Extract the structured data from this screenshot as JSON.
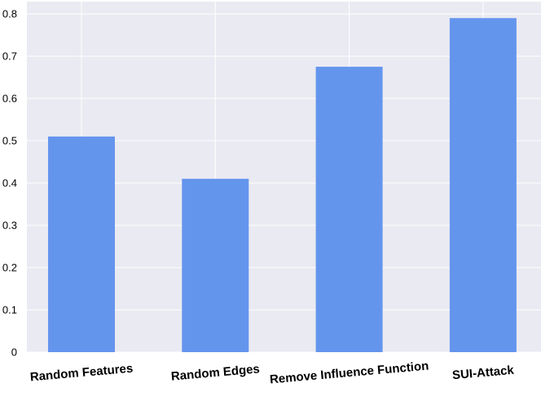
{
  "chart_data": {
    "type": "bar",
    "categories": [
      "Random Features",
      "Random Edges",
      "Remove Influence Function",
      "SUI-Attack"
    ],
    "values": [
      0.51,
      0.41,
      0.675,
      0.79
    ],
    "color": "#6495ed",
    "ylim": [
      0,
      0.829
    ],
    "yticks": [
      0,
      0.1,
      0.2,
      0.3,
      0.4,
      0.5,
      0.6,
      0.7,
      0.8
    ],
    "grid": true
  }
}
